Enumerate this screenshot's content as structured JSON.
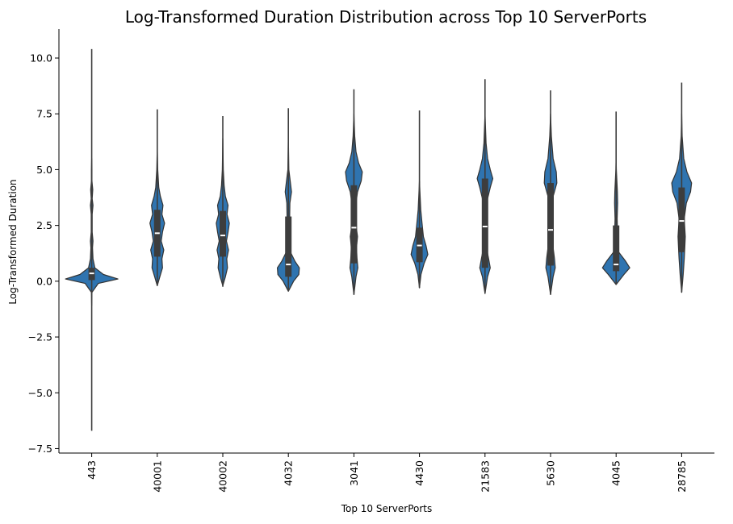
{
  "chart_data": {
    "type": "violin",
    "title": "Log-Transformed Duration Distribution across Top 10 ServerPorts",
    "xlabel": "Top 10 ServerPorts",
    "ylabel": "Log-Transformed Duration",
    "ylim": [
      -7.7,
      11.3
    ],
    "yticks": [
      -7.5,
      -5.0,
      -2.5,
      0.0,
      2.5,
      5.0,
      7.5,
      10.0
    ],
    "ytick_labels": [
      "−7.5",
      "−5.0",
      "−2.5",
      "0.0",
      "2.5",
      "5.0",
      "7.5",
      "10.0"
    ],
    "grid": false,
    "color": "#2f74b0",
    "box_color": "#3d3d3d",
    "categories": [
      "443",
      "40001",
      "40002",
      "4032",
      "3041",
      "4430",
      "21583",
      "5630",
      "4045",
      "28785"
    ],
    "violins": [
      {
        "min": -6.7,
        "max": 10.4,
        "q1": 0.05,
        "median": 0.35,
        "q3": 0.6,
        "density": [
          [
            -1.1,
            0.0
          ],
          [
            -0.5,
            0.01
          ],
          [
            -0.1,
            0.25
          ],
          [
            0.1,
            1.0
          ],
          [
            0.3,
            0.45
          ],
          [
            0.6,
            0.12
          ],
          [
            1.0,
            0.05
          ],
          [
            1.5,
            0.03
          ],
          [
            1.8,
            0.05
          ],
          [
            2.2,
            0.02
          ],
          [
            3.0,
            0.02
          ],
          [
            3.4,
            0.05
          ],
          [
            3.7,
            0.02
          ],
          [
            4.1,
            0.04
          ],
          [
            4.5,
            0.01
          ],
          [
            5.0,
            0.01
          ],
          [
            5.5,
            0.0
          ]
        ]
      },
      {
        "min": -0.2,
        "max": 7.7,
        "q1": 1.1,
        "median": 2.15,
        "q3": 3.2,
        "density": [
          [
            -0.2,
            0.0
          ],
          [
            0.2,
            0.1
          ],
          [
            0.6,
            0.2
          ],
          [
            1.0,
            0.18
          ],
          [
            1.4,
            0.25
          ],
          [
            1.8,
            0.15
          ],
          [
            2.2,
            0.2
          ],
          [
            2.6,
            0.28
          ],
          [
            3.0,
            0.18
          ],
          [
            3.4,
            0.22
          ],
          [
            3.8,
            0.12
          ],
          [
            4.2,
            0.06
          ],
          [
            5.0,
            0.02
          ],
          [
            6.0,
            0.0
          ]
        ]
      },
      {
        "min": -0.25,
        "max": 7.4,
        "q1": 1.1,
        "median": 2.05,
        "q3": 3.15,
        "density": [
          [
            -0.2,
            0.0
          ],
          [
            0.2,
            0.1
          ],
          [
            0.6,
            0.18
          ],
          [
            1.0,
            0.15
          ],
          [
            1.4,
            0.22
          ],
          [
            1.8,
            0.14
          ],
          [
            2.2,
            0.2
          ],
          [
            2.6,
            0.25
          ],
          [
            3.0,
            0.16
          ],
          [
            3.4,
            0.2
          ],
          [
            3.8,
            0.1
          ],
          [
            4.3,
            0.05
          ],
          [
            5.0,
            0.02
          ],
          [
            6.4,
            0.0
          ]
        ]
      },
      {
        "min": -0.45,
        "max": 7.75,
        "q1": 0.2,
        "median": 0.75,
        "q3": 2.9,
        "density": [
          [
            -0.45,
            0.0
          ],
          [
            0.0,
            0.2
          ],
          [
            0.3,
            0.4
          ],
          [
            0.6,
            0.42
          ],
          [
            0.9,
            0.25
          ],
          [
            1.3,
            0.08
          ],
          [
            2.0,
            0.05
          ],
          [
            2.8,
            0.05
          ],
          [
            3.5,
            0.06
          ],
          [
            4.0,
            0.12
          ],
          [
            4.4,
            0.08
          ],
          [
            5.0,
            0.02
          ],
          [
            6.5,
            0.0
          ]
        ]
      },
      {
        "min": -0.6,
        "max": 8.6,
        "q1": 0.8,
        "median": 2.4,
        "q3": 4.3,
        "density": [
          [
            -0.6,
            0.0
          ],
          [
            0.2,
            0.08
          ],
          [
            0.6,
            0.15
          ],
          [
            1.0,
            0.12
          ],
          [
            1.5,
            0.1
          ],
          [
            2.0,
            0.14
          ],
          [
            2.5,
            0.08
          ],
          [
            3.0,
            0.06
          ],
          [
            3.5,
            0.08
          ],
          [
            4.0,
            0.14
          ],
          [
            4.5,
            0.28
          ],
          [
            4.9,
            0.32
          ],
          [
            5.3,
            0.18
          ],
          [
            5.8,
            0.08
          ],
          [
            6.5,
            0.03
          ],
          [
            7.5,
            0.0
          ]
        ]
      },
      {
        "min": -0.3,
        "max": 7.65,
        "q1": 0.85,
        "median": 1.6,
        "q3": 2.4,
        "density": [
          [
            -0.3,
            0.0
          ],
          [
            0.3,
            0.06
          ],
          [
            0.8,
            0.18
          ],
          [
            1.2,
            0.32
          ],
          [
            1.6,
            0.25
          ],
          [
            2.0,
            0.15
          ],
          [
            2.6,
            0.1
          ],
          [
            3.2,
            0.05
          ],
          [
            4.0,
            0.02
          ],
          [
            4.5,
            0.0
          ]
        ]
      },
      {
        "min": -0.55,
        "max": 9.05,
        "q1": 0.6,
        "median": 2.45,
        "q3": 4.6,
        "density": [
          [
            -0.55,
            0.0
          ],
          [
            0.2,
            0.1
          ],
          [
            0.6,
            0.2
          ],
          [
            1.0,
            0.14
          ],
          [
            1.5,
            0.06
          ],
          [
            2.5,
            0.05
          ],
          [
            3.5,
            0.06
          ],
          [
            4.2,
            0.2
          ],
          [
            4.6,
            0.3
          ],
          [
            5.0,
            0.2
          ],
          [
            5.5,
            0.1
          ],
          [
            6.2,
            0.04
          ],
          [
            7.5,
            0.0
          ]
        ]
      },
      {
        "min": -0.6,
        "max": 8.55,
        "q1": 0.7,
        "median": 2.3,
        "q3": 4.4,
        "density": [
          [
            -0.6,
            0.0
          ],
          [
            0.2,
            0.1
          ],
          [
            0.6,
            0.18
          ],
          [
            1.0,
            0.15
          ],
          [
            1.5,
            0.1
          ],
          [
            2.0,
            0.08
          ],
          [
            3.0,
            0.06
          ],
          [
            3.8,
            0.1
          ],
          [
            4.4,
            0.24
          ],
          [
            4.9,
            0.22
          ],
          [
            5.5,
            0.1
          ],
          [
            6.5,
            0.03
          ],
          [
            7.5,
            0.0
          ]
        ]
      },
      {
        "min": -0.15,
        "max": 7.6,
        "q1": 0.45,
        "median": 0.75,
        "q3": 2.5,
        "density": [
          [
            -0.15,
            0.0
          ],
          [
            0.3,
            0.3
          ],
          [
            0.6,
            0.52
          ],
          [
            0.9,
            0.36
          ],
          [
            1.3,
            0.1
          ],
          [
            2.0,
            0.06
          ],
          [
            2.8,
            0.04
          ],
          [
            3.5,
            0.06
          ],
          [
            4.0,
            0.05
          ],
          [
            5.0,
            0.01
          ],
          [
            5.5,
            0.0
          ]
        ]
      },
      {
        "min": -0.5,
        "max": 8.9,
        "q1": 1.3,
        "median": 2.7,
        "q3": 4.2,
        "density": [
          [
            -0.5,
            0.0
          ],
          [
            0.3,
            0.06
          ],
          [
            1.0,
            0.1
          ],
          [
            1.5,
            0.12
          ],
          [
            2.0,
            0.14
          ],
          [
            2.8,
            0.1
          ],
          [
            3.5,
            0.18
          ],
          [
            4.0,
            0.34
          ],
          [
            4.4,
            0.38
          ],
          [
            4.9,
            0.2
          ],
          [
            5.5,
            0.08
          ],
          [
            6.5,
            0.02
          ],
          [
            7.5,
            0.0
          ]
        ]
      }
    ]
  }
}
